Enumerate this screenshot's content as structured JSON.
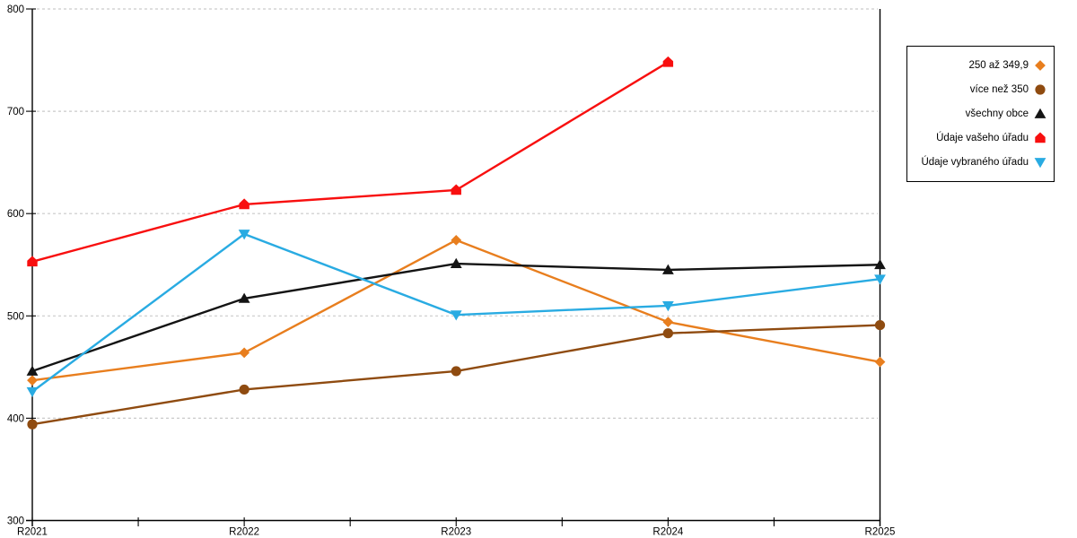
{
  "chart_data": {
    "type": "line",
    "title": "",
    "xlabel": "",
    "ylabel": "",
    "categories": [
      "R2021",
      "R2022",
      "R2023",
      "R2024",
      "R2025"
    ],
    "y_axis": {
      "min": 300,
      "max": 800,
      "step": 100
    },
    "grid": "horizontal-dashed",
    "legend_position": "right",
    "series": [
      {
        "name": "250 až 349,9",
        "marker": "diamond",
        "icon": "diamond-icon",
        "color": "#E87E1E",
        "values": [
          437,
          464,
          574,
          494,
          455
        ]
      },
      {
        "name": "více než 350",
        "marker": "circle",
        "icon": "circle-icon",
        "color": "#8F4B10",
        "values": [
          394,
          428,
          446,
          483,
          491
        ]
      },
      {
        "name": "všechny obce",
        "marker": "triangle-up",
        "icon": "triangle-up-icon",
        "color": "#141414",
        "values": [
          446,
          517,
          551,
          545,
          550
        ]
      },
      {
        "name": "Údaje vašeho úřadu",
        "marker": "pentagon",
        "icon": "pentagon-icon",
        "color": "#F80F0F",
        "values": [
          553,
          609,
          623,
          748,
          null
        ]
      },
      {
        "name": "Údaje vybraného úřadu",
        "marker": "triangle-down",
        "icon": "triangle-down-icon",
        "color": "#29ABE2",
        "values": [
          426,
          580,
          501,
          510,
          536
        ]
      }
    ]
  },
  "colors": {
    "background": "#FFFFFF",
    "grid": "#C9C9C9",
    "axis": "#000000"
  }
}
